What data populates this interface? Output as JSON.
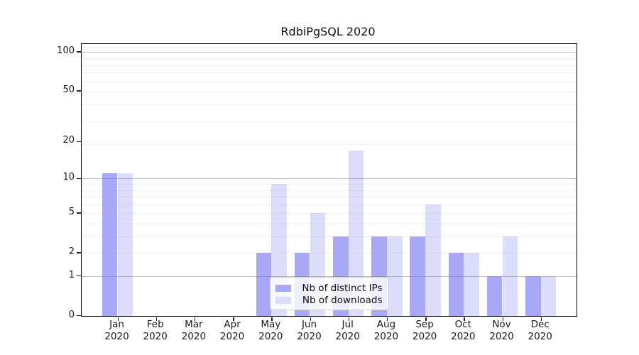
{
  "title": "RdbiPgSQL 2020",
  "legend": {
    "items": [
      {
        "label": "Nb of distinct IPs",
        "color": "#a8a8f6"
      },
      {
        "label": "Nb of downloads",
        "color": "#dcdcfb"
      }
    ]
  },
  "colors": {
    "ips_bar": "#a8a8f6",
    "downloads_bar": "#dcdcfb",
    "grid_major": "rgba(128,128,128,0.5)",
    "grid_minor": "rgba(160,160,160,0.18)",
    "axis": "#000000",
    "text": "#1a1a1a"
  },
  "chart_data": {
    "type": "bar",
    "title": "RdbiPgSQL 2020",
    "categories": [
      "Jan",
      "Feb",
      "Mar",
      "Apr",
      "May",
      "Jun",
      "Jul",
      "Aug",
      "Sep",
      "Oct",
      "Nov",
      "Dec"
    ],
    "year": "2020",
    "series": [
      {
        "name": "Nb of distinct IPs",
        "values": [
          11,
          0,
          0,
          0,
          2,
          2,
          3,
          3,
          3,
          2,
          1,
          1
        ]
      },
      {
        "name": "Nb of downloads",
        "values": [
          11,
          0,
          0,
          0,
          9,
          5,
          17,
          3,
          6,
          2,
          3,
          1
        ]
      }
    ],
    "yticks": [
      0,
      1,
      2,
      5,
      10,
      20,
      50,
      100
    ],
    "yscale": "log10(1+value)",
    "ylim": [
      0,
      114
    ],
    "grid": "horizontal",
    "grid_major_at": [
      1,
      10,
      100
    ],
    "legend_position": "lower center"
  }
}
